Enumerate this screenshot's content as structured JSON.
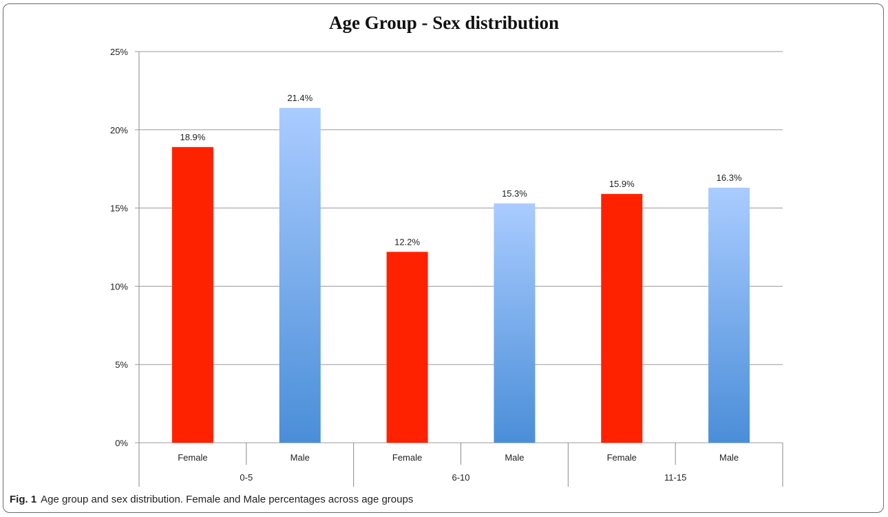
{
  "chart_data": {
    "type": "bar",
    "title": "Age Group - Sex distribution",
    "xlabel": "",
    "ylabel": "",
    "ylim": [
      0,
      25
    ],
    "yticks": [
      "0%",
      "5%",
      "10%",
      "15%",
      "20%",
      "25%"
    ],
    "grid": true,
    "groups": [
      "0-5",
      "6-10",
      "11-15"
    ],
    "categories": [
      "Female",
      "Male",
      "Female",
      "Male",
      "Female",
      "Male"
    ],
    "values": [
      18.9,
      21.4,
      12.2,
      15.3,
      15.9,
      16.3
    ],
    "data_labels": [
      "18.9%",
      "21.4%",
      "12.2%",
      "15.3%",
      "15.9%",
      "16.3%"
    ],
    "colors": {
      "Female": "#ff2200",
      "Male_top": "#aaccff",
      "Male_bottom": "#4a8ed8",
      "grid": "#9a9a9a",
      "axis": "#8a8a8a"
    }
  },
  "caption": {
    "label": "Fig. 1",
    "text": "Age group and sex distribution. Female and Male percentages across age groups"
  }
}
